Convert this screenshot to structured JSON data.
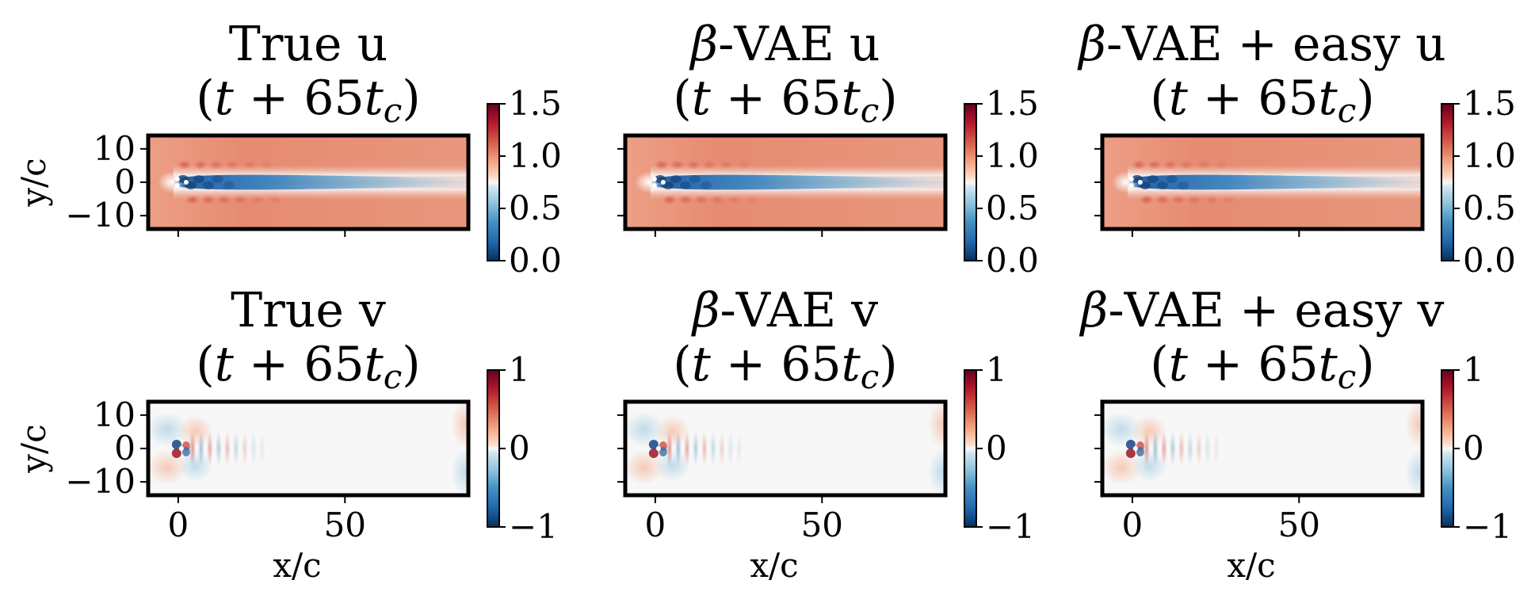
{
  "chart_data": [
    {
      "type": "heatmap",
      "field": "u",
      "title": "True u",
      "subtitle": "(t + 65t_c)",
      "title_parts": {
        "t": "t",
        "plus": " + ",
        "num": "65",
        "t2": "t",
        "sub": "c"
      },
      "xlabel": "",
      "ylabel": "y/c",
      "x_ticks": [
        0,
        50
      ],
      "y_ticks": [
        10,
        0,
        -10
      ],
      "y_tick_labels": [
        "10",
        "0",
        "−10"
      ],
      "xlim": [
        -9,
        87
      ],
      "ylim": [
        -14,
        14
      ],
      "colorbar": {
        "min": 0.0,
        "max": 1.5,
        "ticks": [
          1.5,
          1.0,
          0.5,
          0.0
        ],
        "tick_labels": [
          "1.5",
          "1.0",
          "0.5",
          "0.0"
        ],
        "colormap": "RdBu_r"
      }
    },
    {
      "type": "heatmap",
      "field": "u",
      "title_prefix": "β",
      "title": "-VAE u",
      "subtitle": "(t + 65t_c)",
      "title_parts": {
        "t": "t",
        "plus": " + ",
        "num": "65",
        "t2": "t",
        "sub": "c"
      },
      "xlabel": "",
      "ylabel": "",
      "x_ticks": [
        0,
        50
      ],
      "y_ticks": [
        10,
        0,
        -10
      ],
      "xlim": [
        -9,
        87
      ],
      "ylim": [
        -14,
        14
      ],
      "colorbar": {
        "min": 0.0,
        "max": 1.5,
        "ticks": [
          1.5,
          1.0,
          0.5,
          0.0
        ],
        "tick_labels": [
          "1.5",
          "1.0",
          "0.5",
          "0.0"
        ],
        "colormap": "RdBu_r"
      }
    },
    {
      "type": "heatmap",
      "field": "u",
      "title_prefix": "β",
      "title": "-VAE + easy u",
      "subtitle": "(t + 65t_c)",
      "title_parts": {
        "t": "t",
        "plus": " + ",
        "num": "65",
        "t2": "t",
        "sub": "c"
      },
      "xlabel": "",
      "ylabel": "",
      "x_ticks": [
        0,
        50
      ],
      "y_ticks": [
        10,
        0,
        -10
      ],
      "xlim": [
        -9,
        87
      ],
      "ylim": [
        -14,
        14
      ],
      "colorbar": {
        "min": 0.0,
        "max": 1.5,
        "ticks": [
          1.5,
          1.0,
          0.5,
          0.0
        ],
        "tick_labels": [
          "1.5",
          "1.0",
          "0.5",
          "0.0"
        ],
        "colormap": "RdBu_r"
      }
    },
    {
      "type": "heatmap",
      "field": "v",
      "title": "True v",
      "subtitle": "(t + 65t_c)",
      "title_parts": {
        "t": "t",
        "plus": " + ",
        "num": "65",
        "t2": "t",
        "sub": "c"
      },
      "xlabel": "x/c",
      "ylabel": "y/c",
      "x_ticks": [
        0,
        50
      ],
      "x_tick_labels": [
        "0",
        "50"
      ],
      "y_ticks": [
        10,
        0,
        -10
      ],
      "y_tick_labels": [
        "10",
        "0",
        "−10"
      ],
      "xlim": [
        -9,
        87
      ],
      "ylim": [
        -14,
        14
      ],
      "colorbar": {
        "min": -1,
        "max": 1,
        "ticks": [
          1,
          0,
          -1
        ],
        "tick_labels": [
          "1",
          "0",
          "−1"
        ],
        "colormap": "RdBu_r"
      }
    },
    {
      "type": "heatmap",
      "field": "v",
      "title_prefix": "β",
      "title": "-VAE v",
      "subtitle": "(t + 65t_c)",
      "title_parts": {
        "t": "t",
        "plus": " + ",
        "num": "65",
        "t2": "t",
        "sub": "c"
      },
      "xlabel": "x/c",
      "ylabel": "",
      "x_ticks": [
        0,
        50
      ],
      "x_tick_labels": [
        "0",
        "50"
      ],
      "y_ticks": [
        10,
        0,
        -10
      ],
      "xlim": [
        -9,
        87
      ],
      "ylim": [
        -14,
        14
      ],
      "colorbar": {
        "min": -1,
        "max": 1,
        "ticks": [
          1,
          0,
          -1
        ],
        "tick_labels": [
          "1",
          "0",
          "−1"
        ],
        "colormap": "RdBu_r"
      }
    },
    {
      "type": "heatmap",
      "field": "v",
      "title_prefix": "β",
      "title": "-VAE + easy v",
      "subtitle": "(t + 65t_c)",
      "title_parts": {
        "t": "t",
        "plus": " + ",
        "num": "65",
        "t2": "t",
        "sub": "c"
      },
      "xlabel": "x/c",
      "ylabel": "",
      "x_ticks": [
        0,
        50
      ],
      "x_tick_labels": [
        "0",
        "50"
      ],
      "y_ticks": [
        10,
        0,
        -10
      ],
      "xlim": [
        -9,
        87
      ],
      "ylim": [
        -14,
        14
      ],
      "colorbar": {
        "min": -1,
        "max": 1,
        "ticks": [
          1,
          0,
          -1
        ],
        "tick_labels": [
          "1",
          "0",
          "−1"
        ],
        "colormap": "RdBu_r"
      }
    }
  ],
  "colors": {
    "background_u": "#e8927a",
    "wake_u": "#2166ac",
    "background_v": "#f7f7f7",
    "frame": "#000000"
  }
}
